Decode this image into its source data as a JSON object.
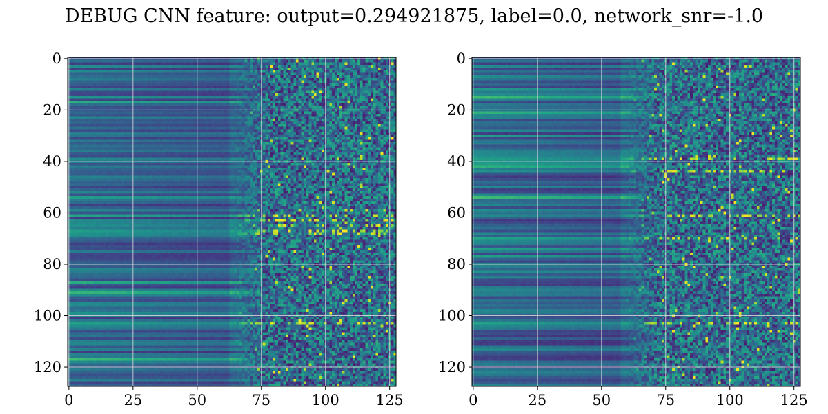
{
  "figure": {
    "title": "DEBUG CNN feature: output=0.294921875, label=0.0, network_snr=-1.0"
  },
  "chart_data": [
    {
      "type": "heatmap",
      "title": "",
      "xlabel": "",
      "ylabel": "",
      "shape": [
        128,
        128
      ],
      "colormap": "viridis",
      "xlim": [
        -0.5,
        127.5
      ],
      "ylim": [
        127.5,
        -0.5
      ],
      "x_ticks": [
        0,
        25,
        50,
        75,
        100,
        125
      ],
      "y_ticks": [
        0,
        20,
        40,
        60,
        80,
        100,
        120
      ],
      "grid": true,
      "description_seed": 7,
      "bright_rows": [
        61,
        63,
        65,
        67,
        68,
        103
      ],
      "noise_onset_column": 75
    },
    {
      "type": "heatmap",
      "title": "",
      "xlabel": "",
      "ylabel": "",
      "shape": [
        128,
        128
      ],
      "colormap": "viridis",
      "xlim": [
        -0.5,
        127.5
      ],
      "ylim": [
        127.5,
        -0.5
      ],
      "x_ticks": [
        0,
        25,
        50,
        75,
        100,
        125
      ],
      "y_ticks": [
        0,
        20,
        40,
        60,
        80,
        100,
        120
      ],
      "grid": true,
      "description_seed": 13,
      "bright_rows": [
        39,
        44,
        61,
        70,
        103
      ],
      "noise_onset_column": 70
    }
  ]
}
